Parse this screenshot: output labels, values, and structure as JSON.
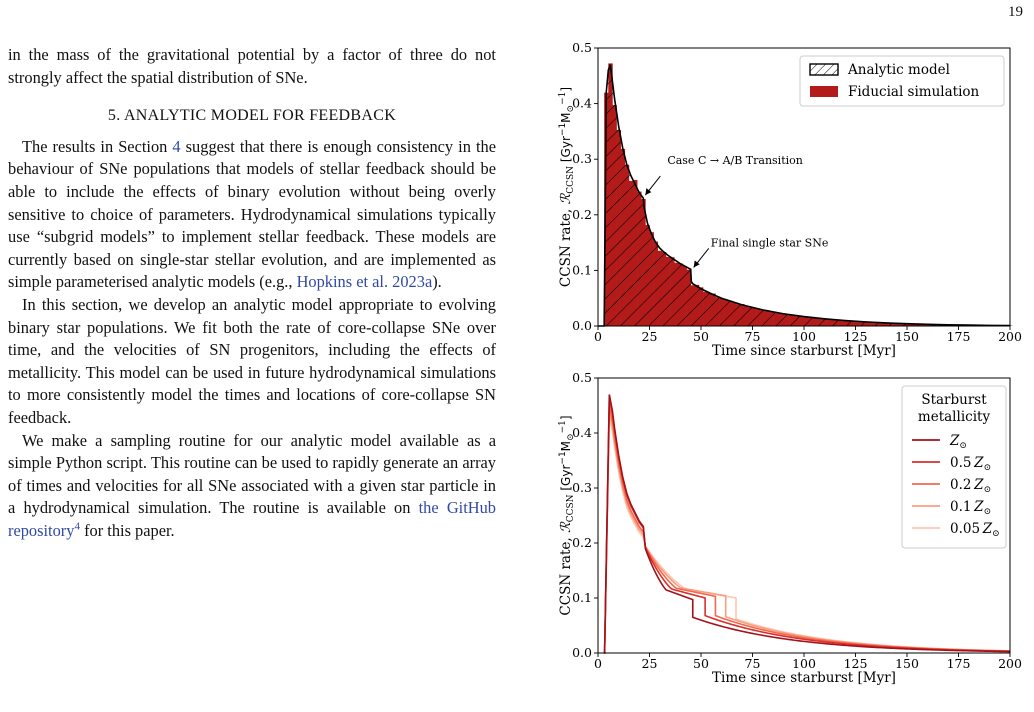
{
  "page_number": "19",
  "text": {
    "p0": "in the mass of the gravitational potential by a factor of three do not strongly affect the spatial distribution of SNe.",
    "section_heading": "5.  ANALYTIC MODEL FOR FEEDBACK",
    "p1_a": "The results in Section ",
    "p1_ref": "4",
    "p1_b": " suggest that there is enough consistency in the behaviour of SNe populations that models of stellar feedback should be able to include the effects of binary evolution without being overly sensitive to choice of parameters.  Hydrodynamical simulations typically use “subgrid models” to implement stellar feedback.  These models are currently based on single-star stellar evolution, and are implemented as simple parameterised analytic models (e.g., ",
    "p1_cite": "Hopkins et al. 2023a",
    "p1_c": ").",
    "p2": "In this section, we develop an analytic model appropriate to evolving binary star populations. We fit both the rate of core-collapse SNe over time, and the velocities of SN progenitors, including the effects of metallicity.  This model can be used in future hydrodynamical simulations to more consistently model the times and locations of core-collapse SN feedback.",
    "p3_a": "We make a sampling routine for our analytic model available as a simple Python script. This routine can be used to rapidly generate an array of times and velocities for all SNe associated with a given star particle in a hydrodynamical simulation. The routine is available on ",
    "p3_link": "the GitHub repository",
    "p3_sup": "4",
    "p3_b": " for this paper."
  },
  "chart_data": [
    {
      "type": "bar",
      "xlabel": "Time since starburst [Myr]",
      "ylabel": "CCSN rate, ℛᴄᴄₛₙ [Gyr⁻¹M⊙⁻¹]",
      "ylabel_parts": {
        "main": "CCSN rate, ",
        "sym": "ℛ",
        "sub": "CCSN",
        "unit": "[Gyr",
        "minus1": "−1",
        "m": "M",
        "sun": "⊙",
        "close": "]"
      },
      "xlim": [
        0,
        200
      ],
      "ylim": [
        0,
        0.5
      ],
      "xticks": [
        0,
        25,
        50,
        75,
        100,
        125,
        150,
        175,
        200
      ],
      "yticks": [
        0.0,
        0.1,
        0.2,
        0.3,
        0.4,
        0.5
      ],
      "ytick_labels": [
        "0.0",
        "0.1",
        "0.2",
        "0.3",
        "0.4",
        "0.5"
      ],
      "legend": {
        "placement": "top-right",
        "entries": [
          "Analytic model",
          "Fiducial simulation"
        ]
      },
      "annotations": [
        {
          "text": "Case C → A/B Transition",
          "x": 22,
          "y": 0.23
        },
        {
          "text": "Final single star SNe",
          "x": 45,
          "y": 0.1
        }
      ],
      "colors": {
        "simulation": "#b31b1b",
        "model": "#000000"
      },
      "series": [
        {
          "name": "Analytic model",
          "x": [
            0,
            3,
            4,
            5,
            6,
            7,
            8,
            10,
            12,
            14,
            16,
            18,
            20,
            21,
            22,
            22.3,
            24,
            26,
            28,
            30,
            32,
            34,
            36,
            38,
            40,
            42,
            44,
            45,
            45.3,
            46,
            50,
            55,
            60,
            70,
            80,
            90,
            100,
            110,
            120,
            130,
            140,
            150,
            160,
            170,
            180,
            190,
            200
          ],
          "values": [
            0,
            0,
            0.42,
            0.46,
            0.47,
            0.44,
            0.41,
            0.36,
            0.32,
            0.29,
            0.27,
            0.255,
            0.24,
            0.235,
            0.23,
            0.215,
            0.185,
            0.165,
            0.15,
            0.14,
            0.133,
            0.127,
            0.122,
            0.117,
            0.112,
            0.108,
            0.104,
            0.102,
            0.08,
            0.076,
            0.067,
            0.058,
            0.05,
            0.038,
            0.029,
            0.022,
            0.017,
            0.013,
            0.0098,
            0.0074,
            0.0055,
            0.0041,
            0.003,
            0.0022,
            0.0016,
            0.0011,
            0.0008
          ]
        }
      ]
    },
    {
      "type": "line",
      "xlabel": "Time since starburst [Myr]",
      "ylabel_parts": {
        "main": "CCSN rate, ",
        "sym": "ℛ",
        "sub": "CCSN",
        "unit": "[Gyr",
        "minus1": "−1",
        "m": "M",
        "sun": "⊙",
        "close": "]"
      },
      "xlim": [
        0,
        200
      ],
      "ylim": [
        0,
        0.5
      ],
      "xticks": [
        0,
        25,
        50,
        75,
        100,
        125,
        150,
        175,
        200
      ],
      "yticks": [
        0.0,
        0.1,
        0.2,
        0.3,
        0.4,
        0.5
      ],
      "ytick_labels": [
        "0.0",
        "0.1",
        "0.2",
        "0.3",
        "0.4",
        "0.5"
      ],
      "legend": {
        "placement": "top-right",
        "title": "Starburst\nmetallicity",
        "title_lines": [
          "Starburst",
          "metallicity"
        ]
      },
      "series": [
        {
          "name": "Z⊙",
          "label_main": "Z",
          "label_coef": "",
          "color": "#a3121a",
          "peak": 0.47,
          "drop_x": 46,
          "drop_from": 0.097,
          "drop_to": 0.065
        },
        {
          "name": "0.5 Z⊙",
          "label_main": "Z",
          "label_coef": "0.5",
          "color": "#d8302c",
          "peak": 0.465,
          "drop_x": 52,
          "drop_from": 0.1,
          "drop_to": 0.068
        },
        {
          "name": "0.2 Z⊙",
          "label_main": "Z",
          "label_coef": "0.2",
          "color": "#f16a4f",
          "peak": 0.45,
          "drop_x": 57,
          "drop_from": 0.103,
          "drop_to": 0.068
        },
        {
          "name": "0.1 Z⊙",
          "label_main": "Z",
          "label_coef": "0.1",
          "color": "#fb9d7f",
          "peak": 0.44,
          "drop_x": 62,
          "drop_from": 0.104,
          "drop_to": 0.066
        },
        {
          "name": "0.05 Z⊙",
          "label_main": "Z",
          "label_coef": "0.05",
          "color": "#fcc7af",
          "peak": 0.43,
          "drop_x": 67,
          "drop_from": 0.1,
          "drop_to": 0.062
        }
      ]
    }
  ]
}
